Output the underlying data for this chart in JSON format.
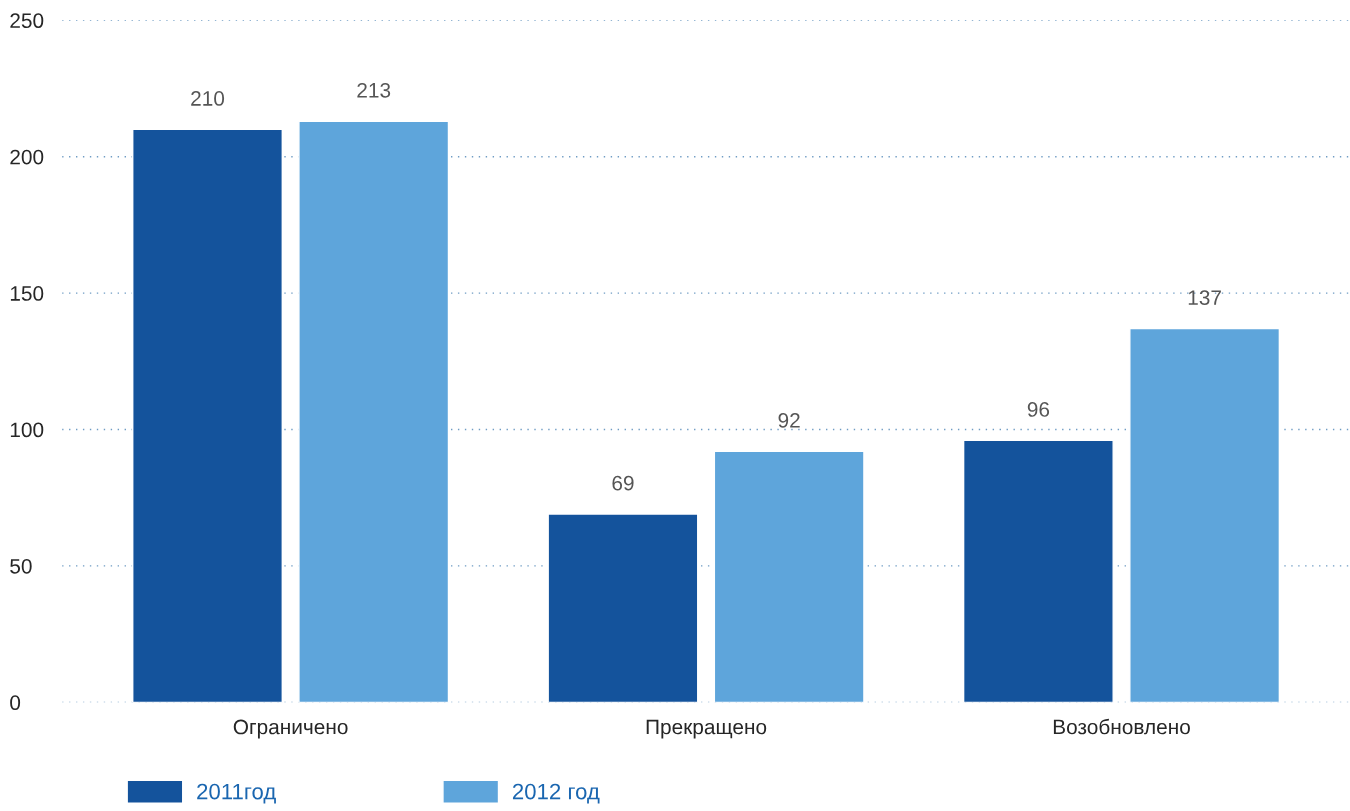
{
  "chart_data": {
    "type": "bar",
    "categories": [
      "Ограничено",
      "Прекращено",
      "Возобновлено"
    ],
    "series": [
      {
        "name": "2011год",
        "color": "#14539c",
        "values": [
          210,
          69,
          96
        ]
      },
      {
        "name": "2012 год",
        "color": "#5ea5db",
        "values": [
          213,
          92,
          137
        ]
      }
    ],
    "ylim": [
      0,
      250
    ],
    "yticks": [
      0,
      50,
      100,
      150,
      200,
      250
    ],
    "grid": "y",
    "legend": "bottom left",
    "data_labels": true
  }
}
